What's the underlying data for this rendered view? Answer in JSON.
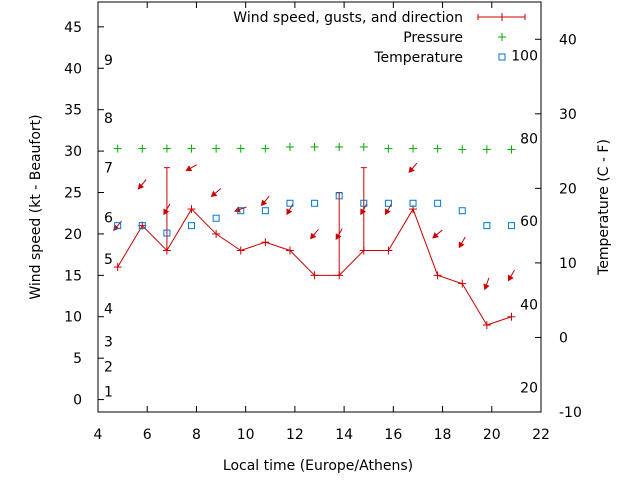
{
  "chart_data": {
    "type": "line",
    "xlabel": "Local time (Europe/Athens)",
    "ylabel": "Wind speed (kt - Beaufort)",
    "y2label": "Temperature (C - F)",
    "xlim": [
      4,
      22
    ],
    "xticks": [
      4,
      6,
      8,
      10,
      12,
      14,
      16,
      18,
      20,
      22
    ],
    "ylim": [
      -1.5,
      48
    ],
    "yticks": [
      0,
      5,
      10,
      15,
      20,
      25,
      30,
      35,
      40,
      45
    ],
    "y2lim": [
      -10,
      45
    ],
    "y2ticks": [
      -10,
      0,
      10,
      20,
      30,
      40
    ],
    "beaufort_labels": [
      {
        "label": "1",
        "y": 1
      },
      {
        "label": "2",
        "y": 4
      },
      {
        "label": "3",
        "y": 7
      },
      {
        "label": "4",
        "y": 11
      },
      {
        "label": "5",
        "y": 17
      },
      {
        "label": "6",
        "y": 22
      },
      {
        "label": "7",
        "y": 28
      },
      {
        "label": "8",
        "y": 34
      },
      {
        "label": "9",
        "y": 41
      }
    ],
    "fahrenheit_labels": [
      {
        "label": "20",
        "y2": -6.7
      },
      {
        "label": "40",
        "y2": 4.4
      },
      {
        "label": "60",
        "y2": 15.6
      },
      {
        "label": "80",
        "y2": 26.7
      },
      {
        "label": "100",
        "y2": 37.8
      }
    ],
    "legend_position": "top-right",
    "series": [
      {
        "name": "Wind speed, gusts, and direction",
        "color": "#cc0000",
        "x": [
          4.8,
          5.8,
          6.8,
          7.8,
          8.8,
          9.8,
          10.8,
          11.8,
          12.8,
          13.8,
          14.8,
          15.8,
          16.8,
          17.8,
          18.8,
          19.8,
          20.8
        ],
        "values": [
          16,
          21,
          18,
          23,
          20,
          18,
          19,
          18,
          15,
          15,
          18,
          18,
          23,
          15,
          14,
          9,
          10
        ],
        "gusts": [
          null,
          null,
          28,
          null,
          null,
          null,
          null,
          null,
          null,
          25,
          28,
          null,
          null,
          null,
          null,
          null,
          null
        ],
        "direction_deg": [
          40,
          40,
          30,
          60,
          50,
          70,
          40,
          30,
          40,
          30,
          30,
          30,
          40,
          50,
          30,
          20,
          30
        ]
      },
      {
        "name": "Pressure",
        "color": "#00aa00",
        "x": [
          4.8,
          5.8,
          6.8,
          7.8,
          8.8,
          9.8,
          10.8,
          11.8,
          12.8,
          13.8,
          14.8,
          15.8,
          16.8,
          17.8,
          18.8,
          19.8,
          20.8
        ],
        "values": [
          30.3,
          30.3,
          30.3,
          30.3,
          30.3,
          30.3,
          30.3,
          30.5,
          30.5,
          30.5,
          30.5,
          30.3,
          30.3,
          30.3,
          30.2,
          30.2,
          30.2
        ]
      },
      {
        "name": "Temperature",
        "color": "#0077cc",
        "axis": "y2",
        "x": [
          4.8,
          5.8,
          6.8,
          7.8,
          8.8,
          9.8,
          10.8,
          11.8,
          12.8,
          13.8,
          14.8,
          15.8,
          16.8,
          17.8,
          18.8,
          19.8,
          20.8
        ],
        "values": [
          15,
          15,
          14,
          15,
          16,
          17,
          17,
          18,
          18,
          19,
          18,
          18,
          18,
          18,
          17,
          15,
          15
        ]
      }
    ]
  }
}
